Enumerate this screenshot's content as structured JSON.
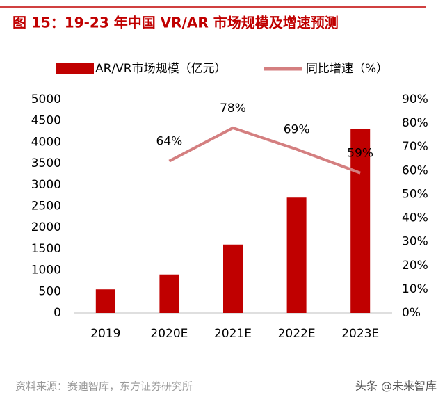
{
  "chart_data": {
    "type": "bar_line",
    "title": "图 15：19-23 年中国 VR/AR 市场规模及增速预测",
    "categories": [
      "2019",
      "2020E",
      "2021E",
      "2022E",
      "2023E"
    ],
    "series": [
      {
        "name": "AR/VR市场规模（亿元）",
        "color": "#c00000",
        "type": "bar",
        "values": [
          550,
          900,
          1600,
          2700,
          4300
        ]
      },
      {
        "name": "同比增速（%）",
        "color": "#d47f80",
        "type": "line",
        "axis": "y2",
        "values": [
          null,
          64,
          78,
          69,
          59
        ],
        "value_labels": [
          null,
          "64%",
          "78%",
          "69%",
          "59%"
        ]
      }
    ],
    "ylim": [
      0,
      5000
    ],
    "yticks": [
      0,
      500,
      1000,
      1500,
      2000,
      2500,
      3000,
      3500,
      4000,
      4500,
      5000
    ],
    "y2lim": [
      0,
      90
    ],
    "y2ticks": [
      {
        "value": 0,
        "label": "0%"
      },
      {
        "value": 10,
        "label": "10%"
      },
      {
        "value": 20,
        "label": "20%"
      },
      {
        "value": 30,
        "label": "30%"
      },
      {
        "value": 40,
        "label": "40%"
      },
      {
        "value": 50,
        "label": "50%"
      },
      {
        "value": 60,
        "label": "60%"
      },
      {
        "value": 70,
        "label": "70%"
      },
      {
        "value": 80,
        "label": "80%"
      },
      {
        "value": 90,
        "label": "90%"
      }
    ],
    "source": "资料来源：赛迪智库，东方证券研究所",
    "watermark": "头条 @未来智库"
  }
}
